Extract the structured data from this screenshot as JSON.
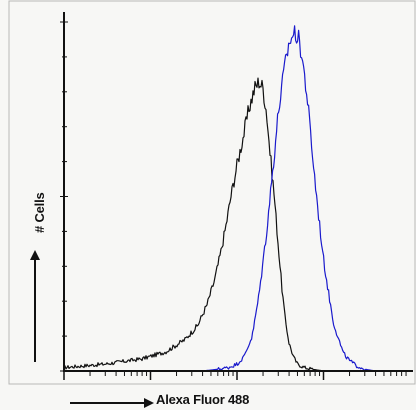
{
  "chart_data": {
    "type": "line",
    "title": "",
    "xlabel": "Alexa Fluor 488",
    "ylabel": "# Cells",
    "x_scale": "log",
    "xlim": [
      0.1,
      1000
    ],
    "ylim": [
      0,
      100
    ],
    "grid": false,
    "legend": "none",
    "series": [
      {
        "color": "#111111",
        "x": [
          0.1,
          0.3,
          0.8,
          1.5,
          2.5,
          3.5,
          4.5,
          5.5,
          6.5,
          7.5,
          8.5,
          10,
          12,
          14,
          16,
          18,
          20,
          22,
          24,
          27,
          30,
          33,
          36,
          40,
          45,
          50,
          60,
          75,
          100
        ],
        "y": [
          1,
          2,
          3.5,
          5.5,
          9,
          13,
          19,
          26,
          34,
          42,
          50,
          59,
          68,
          76,
          81,
          83,
          81,
          74,
          63,
          50,
          36,
          24,
          15,
          8,
          4,
          2,
          1,
          0.5,
          0
        ]
      },
      {
        "color": "#1a1acc",
        "x": [
          4,
          6,
          8,
          10,
          12,
          15,
          18,
          22,
          26,
          30,
          35,
          40,
          46,
          52,
          58,
          65,
          72,
          80,
          90,
          100,
          115,
          130,
          150,
          170,
          200,
          240,
          300,
          400
        ],
        "y": [
          0,
          0.5,
          1,
          2,
          4,
          10,
          22,
          40,
          58,
          74,
          86,
          94,
          97,
          95,
          88,
          78,
          66,
          54,
          42,
          32,
          22,
          14,
          9,
          5,
          3,
          1.5,
          0.5,
          0
        ]
      }
    ]
  },
  "colors": {
    "axis": "#111111",
    "arrow": "#111111",
    "border": "#b8b8b8"
  },
  "x_axis": {
    "arrow_icon": "right-arrow-icon"
  },
  "y_axis": {
    "arrow_icon": "up-arrow-icon"
  }
}
